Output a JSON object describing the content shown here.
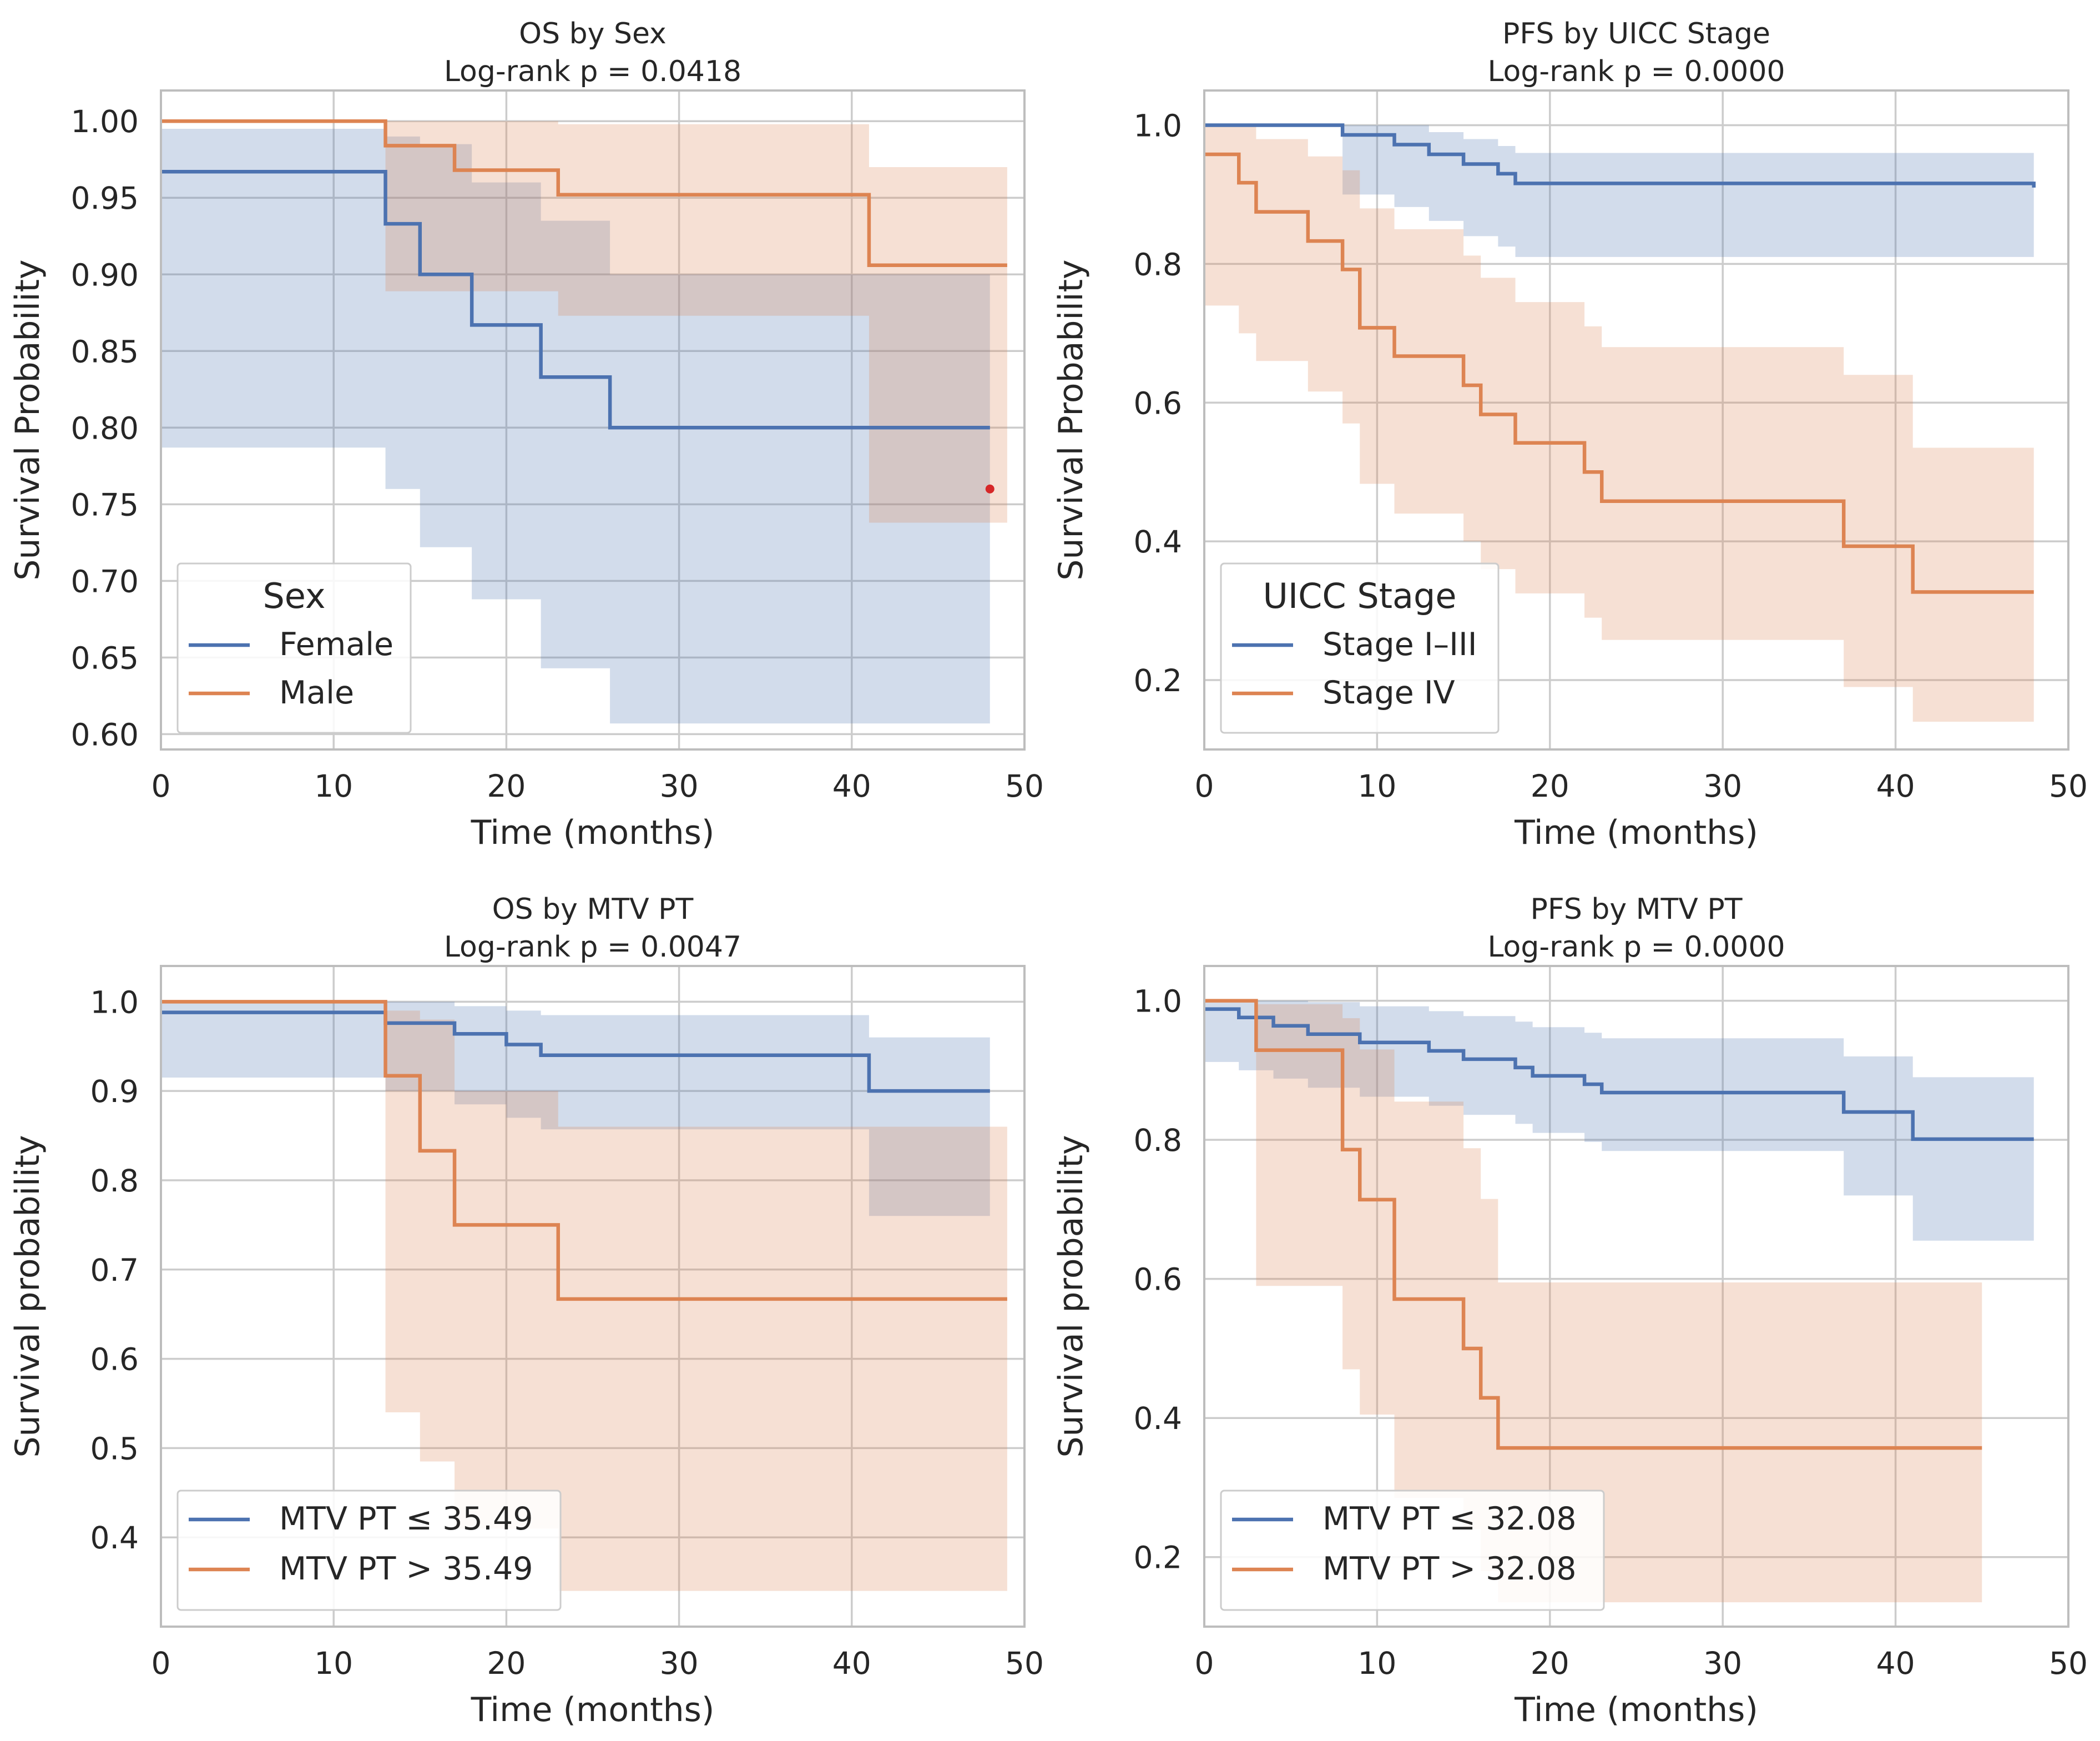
{
  "colors": {
    "blue": "#4C72B0",
    "orange": "#DD8452",
    "marker": "#d62728"
  },
  "chart_data": [
    {
      "type": "line",
      "title": "OS by Sex\nLog-rank p = 0.0418",
      "xlabel": "Time (months)",
      "ylabel": "Survival Probability",
      "xlim": [
        0,
        50
      ],
      "ylim": [
        0.59,
        1.02
      ],
      "xticks": [
        0,
        10,
        20,
        30,
        40,
        50
      ],
      "yticks": [
        0.6,
        0.65,
        0.7,
        0.75,
        0.8,
        0.85,
        0.9,
        0.95,
        1.0
      ],
      "ytick_decimals": 2,
      "legend": {
        "title": "Sex",
        "position": "lower-left"
      },
      "series": [
        {
          "name": "Female",
          "color": "blue",
          "x": [
            0,
            13,
            15,
            18,
            22,
            26,
            48
          ],
          "y": [
            0.967,
            0.933,
            0.9,
            0.867,
            0.833,
            0.8,
            0.8
          ],
          "ci_lower": [
            0.787,
            0.76,
            0.722,
            0.688,
            0.643,
            0.607,
            0.607
          ],
          "ci_upper": [
            0.995,
            0.99,
            0.985,
            0.96,
            0.935,
            0.9,
            0.9
          ]
        },
        {
          "name": "Male",
          "color": "orange",
          "x": [
            0,
            13,
            17,
            23,
            41,
            49
          ],
          "y": [
            1.0,
            0.984,
            0.968,
            0.952,
            0.906,
            0.906
          ],
          "ci_lower": [
            1.0,
            0.889,
            0.889,
            0.873,
            0.738,
            0.738
          ],
          "ci_upper": [
            1.0,
            1.0,
            1.0,
            0.998,
            0.97,
            0.97
          ]
        }
      ],
      "markers": [
        {
          "x": 48,
          "y": 0.76,
          "color": "marker"
        }
      ]
    },
    {
      "type": "line",
      "title": "PFS by UICC Stage\nLog-rank p = 0.0000",
      "xlabel": "Time (months)",
      "ylabel": "Survival Probability",
      "xlim": [
        0,
        50
      ],
      "ylim": [
        0.1,
        1.05
      ],
      "xticks": [
        0,
        10,
        20,
        30,
        40,
        50
      ],
      "yticks": [
        0.2,
        0.4,
        0.6,
        0.8,
        1.0
      ],
      "ytick_decimals": 1,
      "legend": {
        "title": "UICC Stage",
        "position": "lower-left"
      },
      "series": [
        {
          "name": "Stage I–III",
          "color": "blue",
          "x": [
            0,
            8,
            11,
            13,
            15,
            17,
            18,
            48
          ],
          "y": [
            1.0,
            0.986,
            0.972,
            0.958,
            0.944,
            0.93,
            0.916,
            0.91
          ],
          "ci_lower": [
            1.0,
            0.9,
            0.882,
            0.862,
            0.84,
            0.825,
            0.81,
            0.81
          ],
          "ci_upper": [
            1.0,
            1.0,
            1.0,
            0.99,
            0.98,
            0.97,
            0.96,
            0.96
          ]
        },
        {
          "name": "Stage IV",
          "color": "orange",
          "x": [
            0,
            2,
            3,
            6,
            8,
            9,
            11,
            15,
            16,
            18,
            22,
            23,
            37,
            41,
            48
          ],
          "y": [
            0.958,
            0.917,
            0.875,
            0.833,
            0.792,
            0.708,
            0.667,
            0.625,
            0.583,
            0.542,
            0.5,
            0.458,
            0.393,
            0.327,
            0.327
          ],
          "ci_lower": [
            0.74,
            0.7,
            0.66,
            0.616,
            0.57,
            0.483,
            0.44,
            0.4,
            0.36,
            0.325,
            0.29,
            0.258,
            0.19,
            0.14,
            0.14
          ],
          "ci_upper": [
            1.0,
            1.0,
            0.98,
            0.955,
            0.935,
            0.88,
            0.85,
            0.812,
            0.78,
            0.745,
            0.71,
            0.68,
            0.64,
            0.535,
            0.535
          ]
        }
      ]
    },
    {
      "type": "line",
      "title": "OS by MTV PT\nLog-rank p = 0.0047",
      "xlabel": "Time (months)",
      "ylabel": "Survival probability",
      "xlim": [
        0,
        50
      ],
      "ylim": [
        0.3,
        1.04
      ],
      "xticks": [
        0,
        10,
        20,
        30,
        40,
        50
      ],
      "yticks": [
        0.4,
        0.5,
        0.6,
        0.7,
        0.8,
        0.9,
        1.0
      ],
      "ytick_decimals": 1,
      "legend": {
        "title": "",
        "position": "lower-left"
      },
      "series": [
        {
          "name": "MTV PT ≤ 35.49",
          "color": "blue",
          "x": [
            0,
            13,
            17,
            20,
            22,
            26,
            41,
            48
          ],
          "y": [
            0.988,
            0.976,
            0.964,
            0.952,
            0.94,
            0.94,
            0.9,
            0.9
          ],
          "ci_lower": [
            0.915,
            0.9,
            0.885,
            0.87,
            0.857,
            0.857,
            0.76,
            0.76
          ],
          "ci_upper": [
            1.0,
            1.0,
            0.995,
            0.99,
            0.985,
            0.985,
            0.96,
            0.96
          ]
        },
        {
          "name": "MTV PT > 35.49",
          "color": "orange",
          "x": [
            0,
            13,
            15,
            17,
            23,
            49
          ],
          "y": [
            1.0,
            0.917,
            0.833,
            0.75,
            0.667,
            0.667
          ],
          "ci_lower": [
            1.0,
            0.54,
            0.485,
            0.41,
            0.34,
            0.34
          ],
          "ci_upper": [
            1.0,
            0.99,
            0.98,
            0.9,
            0.86,
            0.86
          ]
        }
      ]
    },
    {
      "type": "line",
      "title": "PFS by MTV PT\nLog-rank p = 0.0000",
      "xlabel": "Time (months)",
      "ylabel": "Survival probability",
      "xlim": [
        0,
        50
      ],
      "ylim": [
        0.1,
        1.05
      ],
      "xticks": [
        0,
        10,
        20,
        30,
        40,
        50
      ],
      "yticks": [
        0.2,
        0.4,
        0.6,
        0.8,
        1.0
      ],
      "ytick_decimals": 1,
      "legend": {
        "title": "",
        "position": "lower-left"
      },
      "series": [
        {
          "name": "MTV PT ≤ 32.08",
          "color": "blue",
          "x": [
            0,
            2,
            4,
            6,
            9,
            13,
            15,
            18,
            19,
            22,
            23,
            37,
            41,
            48
          ],
          "y": [
            0.988,
            0.976,
            0.964,
            0.952,
            0.94,
            0.928,
            0.916,
            0.904,
            0.892,
            0.88,
            0.868,
            0.84,
            0.801,
            0.801
          ],
          "ci_lower": [
            0.912,
            0.9,
            0.888,
            0.875,
            0.862,
            0.849,
            0.836,
            0.823,
            0.81,
            0.797,
            0.784,
            0.72,
            0.655,
            0.655
          ],
          "ci_upper": [
            1.0,
            1.0,
            1.0,
            0.998,
            0.992,
            0.985,
            0.978,
            0.97,
            0.962,
            0.954,
            0.946,
            0.92,
            0.89,
            0.89
          ]
        },
        {
          "name": "MTV PT > 32.08",
          "color": "orange",
          "x": [
            0,
            3,
            8,
            9,
            11,
            15,
            16,
            17,
            45
          ],
          "y": [
            1.0,
            0.929,
            0.786,
            0.714,
            0.571,
            0.5,
            0.429,
            0.357,
            0.357
          ],
          "ci_lower": [
            1.0,
            0.59,
            0.47,
            0.405,
            0.285,
            0.24,
            0.18,
            0.135,
            0.135
          ],
          "ci_upper": [
            1.0,
            0.995,
            0.975,
            0.93,
            0.855,
            0.788,
            0.715,
            0.595,
            0.595
          ]
        }
      ]
    }
  ]
}
